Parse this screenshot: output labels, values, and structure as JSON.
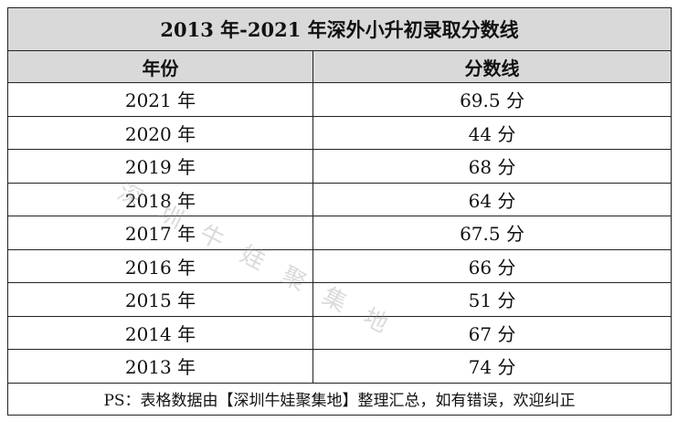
{
  "table": {
    "title": "2013 年-2021 年深外小升初录取分数线",
    "header": [
      "年份",
      "分数线"
    ],
    "rows": [
      [
        "2021 年",
        "69.5 分"
      ],
      [
        "2020 年",
        "44 分"
      ],
      [
        "2019 年",
        "68 分"
      ],
      [
        "2018 年",
        "64 分"
      ],
      [
        "2017 年",
        "67.5 分"
      ],
      [
        "2016 年",
        "66 分"
      ],
      [
        "2015 年",
        "51 分"
      ],
      [
        "2014 年",
        "67 分"
      ],
      [
        "2013 年",
        "74 分"
      ]
    ],
    "footer": "PS：表格数据由【深圳牛娃聚集地】整理汇总，如有错误，欢迎纠正"
  },
  "watermark": "深 圳 牛 娃 聚 集 地"
}
